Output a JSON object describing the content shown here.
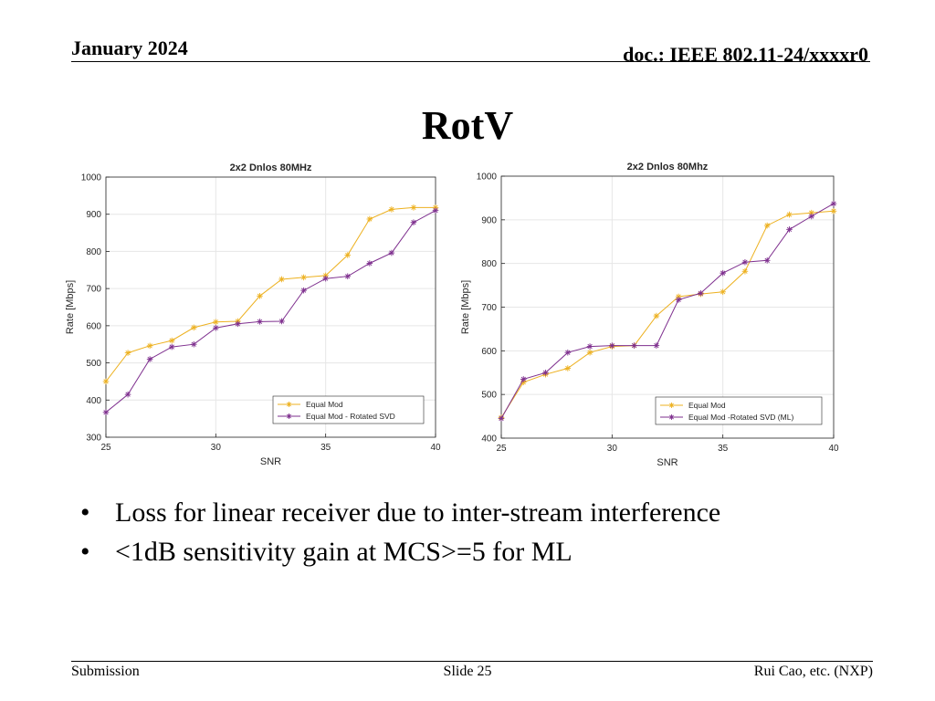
{
  "header": {
    "date": "January 2024",
    "doc": "doc.: IEEE 802.11-24/xxxxr0"
  },
  "slide": {
    "title": "RotV",
    "bullets": [
      "Loss for linear receiver due to inter-stream interference",
      "<1dB sensitivity gain at MCS>=5 for ML"
    ]
  },
  "footer": {
    "left": "Submission",
    "center": "Slide 25",
    "right": "Rui Cao, etc. (NXP)"
  },
  "colors": {
    "equal_mod": "#EDB120",
    "rotated": "#7E2F8E"
  },
  "chart_data": [
    {
      "type": "line",
      "title": "2x2 Dnlos 80MHz",
      "xlabel": "SNR",
      "ylabel": "Rate [Mbps]",
      "xlim": [
        25,
        40
      ],
      "ylim": [
        300,
        1000
      ],
      "xticks": [
        25,
        30,
        35,
        40
      ],
      "yticks": [
        300,
        400,
        500,
        600,
        700,
        800,
        900,
        1000
      ],
      "grid": true,
      "legend": "bottom-right",
      "x": [
        25,
        26,
        27,
        28,
        29,
        30,
        31,
        32,
        33,
        34,
        35,
        36,
        37,
        38,
        39,
        40
      ],
      "series": [
        {
          "name": "Equal Mod",
          "color": "#EDB120",
          "marker": "star",
          "values": [
            450,
            527,
            546,
            560,
            595,
            610,
            612,
            680,
            725,
            730,
            735,
            790,
            887,
            913,
            918,
            918
          ]
        },
        {
          "name": "Equal Mod - Rotated SVD",
          "color": "#7E2F8E",
          "marker": "star",
          "values": [
            367,
            415,
            510,
            543,
            550,
            594,
            605,
            611,
            612,
            695,
            727,
            733,
            768,
            796,
            878,
            910
          ]
        }
      ]
    },
    {
      "type": "line",
      "title": "2x2 Dnlos 80Mhz",
      "xlabel": "SNR",
      "ylabel": "Rate [Mbps]",
      "xlim": [
        25,
        40
      ],
      "ylim": [
        400,
        1000
      ],
      "xticks": [
        25,
        30,
        35,
        40
      ],
      "yticks": [
        400,
        500,
        600,
        700,
        800,
        900,
        1000
      ],
      "grid": true,
      "legend": "bottom-right",
      "x": [
        25,
        26,
        27,
        28,
        29,
        30,
        31,
        32,
        33,
        34,
        35,
        36,
        37,
        38,
        39,
        40
      ],
      "series": [
        {
          "name": "Equal Mod",
          "color": "#EDB120",
          "marker": "star",
          "values": [
            447,
            528,
            546,
            560,
            596,
            610,
            612,
            680,
            724,
            730,
            735,
            782,
            887,
            912,
            916,
            920
          ]
        },
        {
          "name": "Equal Mod -Rotated SVD (ML)",
          "color": "#7E2F8E",
          "marker": "star",
          "values": [
            445,
            535,
            550,
            596,
            610,
            612,
            612,
            612,
            717,
            732,
            778,
            803,
            807,
            878,
            908,
            937
          ]
        }
      ]
    }
  ]
}
